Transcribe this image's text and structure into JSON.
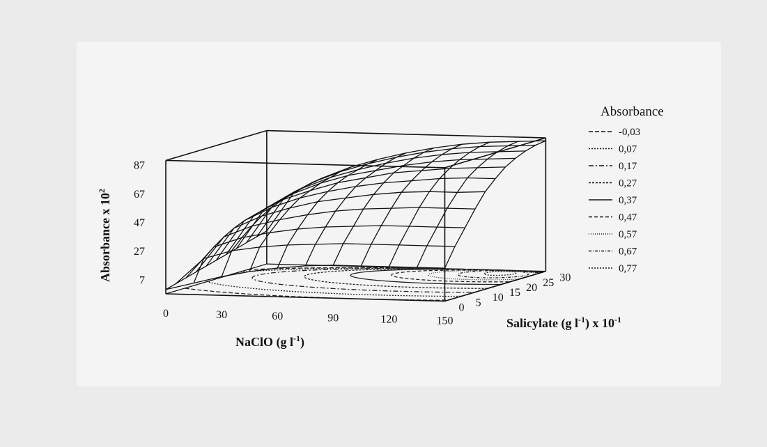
{
  "chart_data": {
    "type": "surface3d",
    "zlabel": "Absorbance x 10",
    "zlabel_exp": "2",
    "z_ticks": [
      "7",
      "27",
      "47",
      "67",
      "87"
    ],
    "xlabel": "NaClO (g l",
    "xlabel_exp": "-1",
    "xlabel_end": ")",
    "x_ticks": [
      "0",
      "30",
      "60",
      "90",
      "120",
      "150"
    ],
    "ylabel": "Salicylate (g l",
    "ylabel_exp": "-1",
    "ylabel_mid": ") x 10",
    "ylabel_exp2": "-1",
    "y_ticks": [
      "0",
      "5",
      "10",
      "15",
      "20",
      "25",
      "30"
    ],
    "legend_title": "Absorbance",
    "legend": [
      "-0,03",
      "0,07",
      "0,17",
      "0,27",
      "0,37",
      "0,47",
      "0,57",
      "0,67",
      "0,77"
    ],
    "legend_dashes": [
      "6,3",
      "2,2",
      "7,3,2,3",
      "3,2",
      "",
      "5,3",
      "1,2",
      "4,2,1,2",
      "2,2"
    ],
    "x_range": [
      0,
      150
    ],
    "y_range": [
      0,
      30
    ],
    "z_range": [
      -3,
      90
    ],
    "surface": {
      "x": [
        0,
        15,
        30,
        45,
        60,
        75,
        90,
        105,
        120,
        135,
        150
      ],
      "y": [
        0,
        3,
        6,
        9,
        12,
        15,
        18,
        21,
        24,
        27,
        30
      ],
      "z": [
        [
          0,
          2,
          4,
          6,
          8,
          10,
          12,
          14,
          16,
          18,
          20
        ],
        [
          5,
          20,
          26,
          31,
          35,
          38,
          40,
          42,
          44,
          46,
          48
        ],
        [
          10,
          26,
          33,
          39,
          44,
          48,
          51,
          53,
          55,
          57,
          58
        ],
        [
          14,
          29,
          37,
          44,
          50,
          55,
          58,
          61,
          63,
          65,
          66
        ],
        [
          17,
          31,
          40,
          48,
          55,
          60,
          64,
          67,
          69,
          71,
          72
        ],
        [
          19,
          32,
          42,
          51,
          58,
          64,
          68,
          71,
          74,
          76,
          77
        ],
        [
          20,
          33,
          43,
          53,
          61,
          67,
          72,
          75,
          78,
          80,
          81
        ],
        [
          20,
          33,
          44,
          54,
          63,
          69,
          74,
          78,
          81,
          83,
          84
        ],
        [
          20,
          33,
          44,
          55,
          64,
          71,
          76,
          80,
          83,
          85,
          86
        ],
        [
          20,
          33,
          44,
          55,
          64,
          72,
          77,
          81,
          84,
          86,
          87
        ],
        [
          20,
          33,
          44,
          55,
          65,
          72,
          78,
          82,
          85,
          87,
          88
        ]
      ]
    },
    "contours": [
      {
        "level": "-0,03",
        "cx": 105,
        "cy": 15,
        "rx": 135,
        "ry": 15
      },
      {
        "level": "0,07",
        "cx": 110,
        "cy": 17,
        "rx": 118,
        "ry": 13
      },
      {
        "level": "0,17",
        "cx": 114,
        "cy": 19,
        "rx": 100,
        "ry": 11
      },
      {
        "level": "0,27",
        "cx": 118,
        "cy": 21,
        "rx": 80,
        "ry": 9
      },
      {
        "level": "0,37",
        "cx": 121,
        "cy": 23,
        "rx": 62,
        "ry": 7
      },
      {
        "level": "0,47",
        "cx": 124,
        "cy": 24,
        "rx": 45,
        "ry": 5.5
      },
      {
        "level": "0,57",
        "cx": 127,
        "cy": 25,
        "rx": 30,
        "ry": 4.5
      },
      {
        "level": "0,67",
        "cx": 129,
        "cy": 26,
        "rx": 18,
        "ry": 3.5
      },
      {
        "level": "0,77",
        "cx": 131,
        "cy": 27,
        "rx": 8,
        "ry": 2
      }
    ]
  }
}
